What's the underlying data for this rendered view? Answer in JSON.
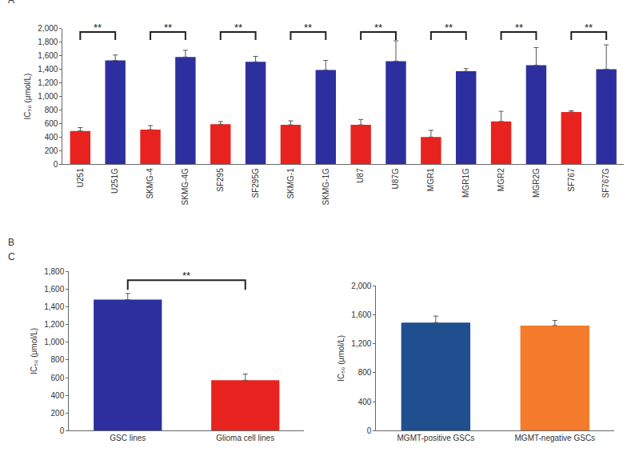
{
  "chart_data": [
    {
      "type": "bar",
      "title": "A",
      "y_label": "IC₅₀ (μmol/L)",
      "categories": [
        "U251",
        "U251G",
        "SKMG-4",
        "SKMG-4G",
        "SF295",
        "SF295G",
        "SKMG-1",
        "SKMG-1G",
        "U87",
        "U87G",
        "MGR1",
        "MGR1G",
        "MGR2",
        "MGR2G",
        "SF767",
        "SF767G"
      ],
      "values": [
        490,
        1530,
        510,
        1580,
        590,
        1510,
        580,
        1390,
        580,
        1520,
        400,
        1370,
        630,
        1460,
        770,
        1400
      ],
      "errors": [
        50,
        80,
        60,
        100,
        40,
        80,
        60,
        140,
        80,
        300,
        100,
        40,
        150,
        260,
        20,
        360
      ],
      "colors": [
        "#e8231f",
        "#2e2f9e",
        "#e8231f",
        "#2e2f9e",
        "#e8231f",
        "#2e2f9e",
        "#e8231f",
        "#2e2f9e",
        "#e8231f",
        "#2e2f9e",
        "#e8231f",
        "#2e2f9e",
        "#e8231f",
        "#2e2f9e",
        "#e8231f",
        "#2e2f9e"
      ],
      "ylim": [
        0,
        2000
      ],
      "yticks": [
        0,
        200,
        400,
        600,
        800,
        {
          "value": 1000,
          "label": "1,000"
        },
        {
          "value": 1200,
          "label": "1,200"
        },
        {
          "value": 1400,
          "label": "1,400"
        },
        {
          "value": 1600,
          "label": "1,600"
        },
        {
          "value": 1800,
          "label": "1,800"
        },
        {
          "value": 2000,
          "label": "2,000"
        }
      ],
      "grid": false,
      "brackets": [
        {
          "from": "U251",
          "to": "U251G",
          "y": 1950,
          "label": "**"
        },
        {
          "from": "SKMG-4",
          "to": "SKMG-4G",
          "y": 1950,
          "label": "**"
        },
        {
          "from": "SF295",
          "to": "SF295G",
          "y": 1950,
          "label": "**"
        },
        {
          "from": "SKMG-1",
          "to": "SKMG-1G",
          "y": 1950,
          "label": "**"
        },
        {
          "from": "U87",
          "to": "U87G",
          "y": 1950,
          "label": "**"
        },
        {
          "from": "MGR1",
          "to": "MGR1G",
          "y": 1950,
          "label": "**"
        },
        {
          "from": "MGR2",
          "to": "MGR2G",
          "y": 1950,
          "label": "**"
        },
        {
          "from": "SF767",
          "to": "SF767G",
          "y": 1950,
          "label": "**"
        }
      ]
    },
    {
      "type": "bar",
      "title": "B",
      "y_label": "IC₅₀ (μmol/L)",
      "categories": [
        "GSC lines",
        "Glioma cell lines"
      ],
      "values": [
        1480,
        570
      ],
      "errors": [
        70,
        70
      ],
      "colors": [
        "#2e2f9e",
        "#e8231f"
      ],
      "ylim": [
        0,
        1800
      ],
      "yticks": [
        0,
        200,
        400,
        600,
        800,
        {
          "value": 1000,
          "label": "1,000"
        },
        {
          "value": 1200,
          "label": "1,200"
        },
        {
          "value": 1400,
          "label": "1,400"
        },
        {
          "value": 1600,
          "label": "1,600"
        },
        {
          "value": 1800,
          "label": "1,800"
        }
      ],
      "grid": false,
      "brackets": [
        {
          "from": "GSC lines",
          "to": "Glioma cell lines",
          "y": 1700,
          "label": "**"
        }
      ]
    },
    {
      "type": "bar",
      "title": "C",
      "y_label": "IC₅₀ (μmol/L)",
      "categories": [
        "MGMT-positive GSCs",
        "MGMT-negative GSCs"
      ],
      "values": [
        1490,
        1450
      ],
      "errors": [
        90,
        70
      ],
      "colors": [
        "#1f4f8f",
        "#f47b2b"
      ],
      "ylim": [
        0,
        2000
      ],
      "yticks": [
        0,
        400,
        800,
        {
          "value": 1200,
          "label": "1,200"
        },
        {
          "value": 1600,
          "label": "1,600"
        },
        {
          "value": 2000,
          "label": "2,000"
        }
      ],
      "grid": false
    }
  ]
}
